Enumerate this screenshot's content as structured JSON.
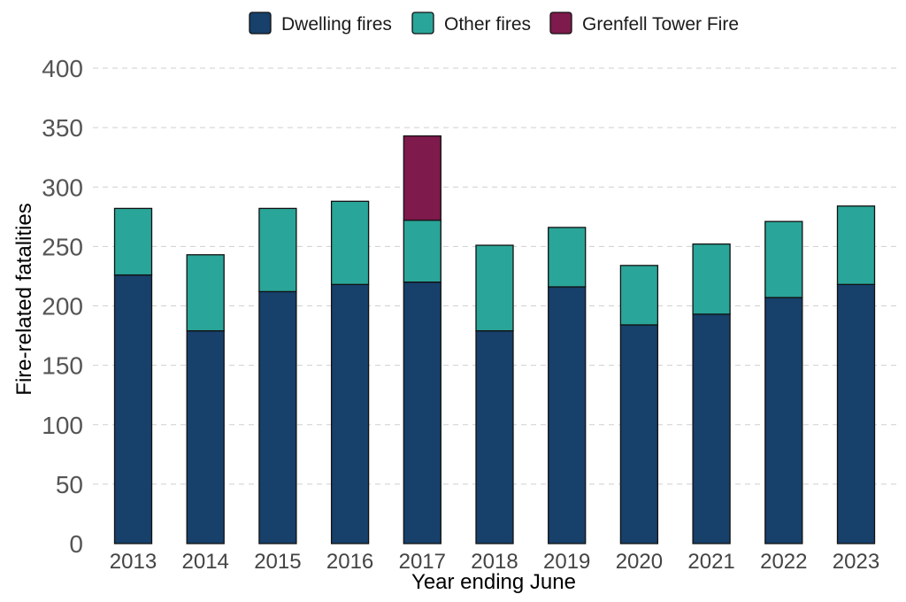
{
  "chart_data": {
    "type": "bar",
    "stacked": true,
    "categories": [
      "2013",
      "2014",
      "2015",
      "2016",
      "2017",
      "2018",
      "2019",
      "2020",
      "2021",
      "2022",
      "2023"
    ],
    "series": [
      {
        "name": "Dwelling fires",
        "color": "#17406b",
        "values": [
          226,
          179,
          212,
          218,
          220,
          179,
          216,
          184,
          193,
          207,
          218
        ]
      },
      {
        "name": "Other fires",
        "color": "#2aa599",
        "values": [
          56,
          64,
          70,
          70,
          52,
          72,
          50,
          50,
          59,
          64,
          66
        ]
      },
      {
        "name": "Grenfell Tower Fire",
        "color": "#7e1a4c",
        "values": [
          0,
          0,
          0,
          0,
          71,
          0,
          0,
          0,
          0,
          0,
          0
        ]
      }
    ],
    "xlabel": "Year ending June",
    "ylabel": "Fire-related fatalities",
    "ylim": [
      0,
      400
    ],
    "yticks": [
      "0",
      "50",
      "100",
      "150",
      "200",
      "250",
      "300",
      "350",
      "400"
    ],
    "grid": "horizontal dashed",
    "legend_position": "top"
  }
}
